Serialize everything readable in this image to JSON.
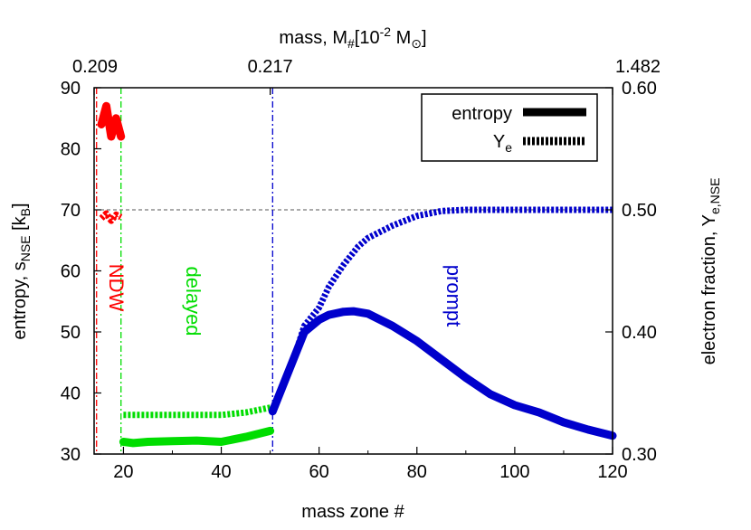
{
  "chart_data": {
    "type": "line",
    "x_axis": {
      "label": "mass zone #",
      "range": [
        14,
        120
      ],
      "ticks": [
        20,
        40,
        60,
        80,
        100,
        120
      ]
    },
    "x2_axis": {
      "label_main": "mass, M",
      "label_sub": "#",
      "label_bracket_open": "[10",
      "label_sup": "-2",
      "label_unit": " M",
      "label_sun_sub": "⊙",
      "label_bracket_close": "]",
      "ticks": [
        {
          "at_zone": 14,
          "label": "0.209"
        },
        {
          "at_zone": 50,
          "label": "0.217"
        },
        {
          "at_zone": 120,
          "label": "1.482"
        }
      ]
    },
    "y_left": {
      "label_main": "entropy, s",
      "label_sub": "NSE",
      "label_bracket_open": " [k",
      "label_unit_sub": "B",
      "label_bracket_close": "]",
      "range": [
        30,
        90
      ],
      "ticks": [
        30,
        40,
        50,
        60,
        70,
        80,
        90
      ]
    },
    "y_right": {
      "label_main": "electron fraction, Y",
      "label_sub": "e,NSE",
      "range": [
        0.3,
        0.6
      ],
      "ticks": [
        "0.30",
        "0.40",
        "0.50",
        "0.60"
      ]
    },
    "reference_line_ye": 0.5,
    "vertical_lines": [
      {
        "zone": 14.5,
        "color": "#ff0000"
      },
      {
        "zone": 19.5,
        "color": "#00dd00"
      },
      {
        "zone": 50.5,
        "color": "#0000cc"
      }
    ],
    "region_labels": [
      {
        "text": "NDW",
        "color": "#ff0000"
      },
      {
        "text": "delayed",
        "color": "#00dd00"
      },
      {
        "text": "prompt",
        "color": "#0000cc"
      }
    ],
    "legend": {
      "placement": "top-right",
      "entries": [
        {
          "label_main": "entropy",
          "label_sub": "",
          "style": "solid"
        },
        {
          "label_main": "Y",
          "label_sub": "e",
          "style": "dotted"
        }
      ]
    },
    "series": [
      {
        "group": "NDW",
        "quantity": "entropy",
        "color": "#ff0000",
        "style": "solid",
        "x": [
          15.5,
          16.5,
          17.5,
          18.5,
          19.5
        ],
        "y": [
          84,
          87,
          82,
          85,
          82
        ]
      },
      {
        "group": "NDW",
        "quantity": "Ye",
        "color": "#ff0000",
        "style": "dotted",
        "x": [
          15.5,
          16.5,
          17.5,
          18.5,
          19.5
        ],
        "y": [
          0.493,
          0.497,
          0.491,
          0.496,
          0.494
        ]
      },
      {
        "group": "delayed",
        "quantity": "entropy",
        "color": "#00dd00",
        "style": "solid",
        "x": [
          20,
          22,
          25,
          30,
          35,
          40,
          45,
          50
        ],
        "y": [
          32.0,
          31.8,
          32.0,
          32.1,
          32.2,
          32.0,
          32.8,
          33.8
        ]
      },
      {
        "group": "delayed",
        "quantity": "Ye",
        "color": "#00dd00",
        "style": "dotted",
        "x": [
          20,
          25,
          30,
          35,
          40,
          45,
          50
        ],
        "y": [
          0.332,
          0.332,
          0.332,
          0.332,
          0.332,
          0.334,
          0.338
        ]
      },
      {
        "group": "prompt",
        "quantity": "entropy",
        "color": "#0000cc",
        "style": "solid",
        "x": [
          50.5,
          53,
          55,
          57,
          60,
          62,
          65,
          67,
          70,
          75,
          80,
          85,
          90,
          95,
          100,
          105,
          110,
          115,
          120
        ],
        "y": [
          37,
          42,
          46,
          50,
          52,
          52.8,
          53.3,
          53.4,
          53,
          51,
          48.5,
          45.5,
          42.5,
          39.8,
          38,
          36.8,
          35.2,
          34,
          33
        ]
      },
      {
        "group": "prompt",
        "quantity": "Ye",
        "color": "#0000cc",
        "style": "dotted",
        "x": [
          50.5,
          53,
          55,
          57,
          60,
          62,
          65,
          68,
          70,
          75,
          80,
          85,
          90,
          100,
          110,
          120
        ],
        "y": [
          0.335,
          0.36,
          0.38,
          0.405,
          0.42,
          0.437,
          0.455,
          0.47,
          0.477,
          0.487,
          0.495,
          0.499,
          0.5,
          0.5,
          0.5,
          0.5
        ]
      }
    ]
  }
}
